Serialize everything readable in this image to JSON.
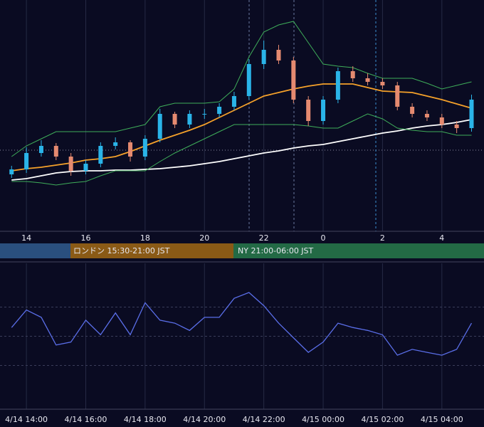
{
  "chart_data": [
    {
      "type": "candlestick",
      "x": [
        13.5,
        14,
        14.5,
        15,
        15.5,
        16,
        16.5,
        17,
        17.5,
        18,
        18.5,
        19,
        19.5,
        20,
        20.5,
        21,
        21.5,
        22,
        22.5,
        23,
        23.5,
        24,
        24.5,
        25,
        25.5,
        26,
        26.5,
        27,
        27.5,
        28,
        28.5,
        29
      ],
      "open": [
        80,
        87,
        110,
        120,
        105,
        85,
        95,
        120,
        125,
        105,
        130,
        165,
        150,
        165,
        165,
        175,
        190,
        235,
        255,
        240,
        185,
        155,
        185,
        225,
        215,
        210,
        205,
        175,
        165,
        160,
        150,
        145
      ],
      "high": [
        92,
        118,
        128,
        124,
        110,
        100,
        125,
        132,
        128,
        135,
        172,
        168,
        170,
        172,
        180,
        196,
        242,
        268,
        262,
        245,
        190,
        190,
        230,
        232,
        222,
        215,
        210,
        180,
        170,
        165,
        155,
        192
      ],
      "low": [
        75,
        82,
        105,
        100,
        78,
        80,
        90,
        115,
        98,
        100,
        125,
        145,
        145,
        158,
        160,
        170,
        185,
        228,
        235,
        180,
        148,
        150,
        180,
        210,
        205,
        200,
        170,
        160,
        155,
        145,
        138,
        140
      ],
      "close": [
        87,
        110,
        120,
        105,
        85,
        95,
        120,
        125,
        105,
        130,
        165,
        150,
        165,
        165,
        175,
        190,
        235,
        255,
        240,
        185,
        155,
        185,
        225,
        215,
        210,
        205,
        175,
        165,
        160,
        150,
        145,
        185
      ],
      "up_color": "#2ab4e8",
      "down_color": "#e58a70",
      "series": [
        {
          "color": "#f5a12a",
          "values": [
            85,
            88,
            90,
            93,
            96,
            100,
            102,
            105,
            112,
            120,
            128,
            135,
            142,
            150,
            160,
            170,
            180,
            190,
            195,
            200,
            204,
            207,
            207,
            207,
            202,
            197,
            196,
            195,
            190,
            185,
            179,
            173
          ]
        },
        {
          "color": "#ffffff",
          "values": [
            72,
            74,
            78,
            82,
            84,
            85,
            85,
            86,
            86,
            87,
            88,
            90,
            92,
            95,
            98,
            102,
            106,
            110,
            113,
            117,
            120,
            122,
            126,
            130,
            134,
            138,
            141,
            145,
            148,
            150,
            153,
            157
          ]
        },
        {
          "color": "#3fae5a",
          "values": [
            105,
            120,
            130,
            140,
            140,
            140,
            140,
            140,
            145,
            150,
            175,
            180,
            180,
            180,
            182,
            200,
            245,
            280,
            290,
            295,
            265,
            235,
            232,
            230,
            222,
            215,
            215,
            215,
            208,
            200,
            205,
            210
          ]
        },
        {
          "color": "#3fae5a",
          "values": [
            70,
            70,
            68,
            65,
            68,
            70,
            78,
            85,
            85,
            85,
            98,
            110,
            120,
            130,
            140,
            150,
            150,
            150,
            150,
            150,
            148,
            145,
            145,
            155,
            165,
            158,
            145,
            142,
            140,
            140,
            135,
            135
          ]
        }
      ],
      "xlim": [
        13.11,
        29.42
      ],
      "ylim": [
        0,
        325
      ],
      "xticks": [
        14,
        16,
        18,
        20,
        22,
        {
          "value": 24,
          "label": "0"
        },
        {
          "value": 26,
          "label": "2"
        },
        {
          "value": 28,
          "label": "4"
        }
      ],
      "grid": true
    },
    {
      "type": "line",
      "x": [
        13.5,
        14,
        14.5,
        15,
        15.5,
        16,
        16.5,
        17,
        17.5,
        18,
        18.5,
        19,
        19.5,
        20,
        20.5,
        21,
        21.5,
        22,
        22.5,
        23,
        23.5,
        24,
        24.5,
        25,
        25.5,
        26,
        26.5,
        27,
        27.5,
        28,
        28.5,
        29
      ],
      "values": [
        56,
        68,
        63,
        44,
        46,
        61,
        51,
        66,
        51,
        73,
        61,
        59,
        54,
        63,
        63,
        76,
        80,
        71,
        59,
        49,
        39,
        46,
        59,
        56,
        54,
        51,
        37,
        41,
        39,
        37,
        41,
        59
      ],
      "color": "#5a6ee8",
      "xlim": [
        13.11,
        29.42
      ],
      "ylim": [
        0,
        100
      ],
      "yticks": [
        30,
        50,
        70
      ],
      "xticks": [
        {
          "value": 14,
          "label": "4/14 14:00"
        },
        {
          "value": 16,
          "label": "4/14 16:00"
        },
        {
          "value": 18,
          "label": "4/14 18:00"
        },
        {
          "value": 20,
          "label": "4/14 20:00"
        },
        {
          "value": 22,
          "label": "4/14 22:00"
        },
        {
          "value": 24,
          "label": "4/15 00:00"
        },
        {
          "value": 26,
          "label": "4/15 02:00"
        },
        {
          "value": 28,
          "label": "4/15 04:00"
        }
      ],
      "grid": true
    }
  ],
  "sessions": {
    "london": "ロンドン 15:30-21:00 JST",
    "ny": "NY 21:00-06:00 JST"
  }
}
